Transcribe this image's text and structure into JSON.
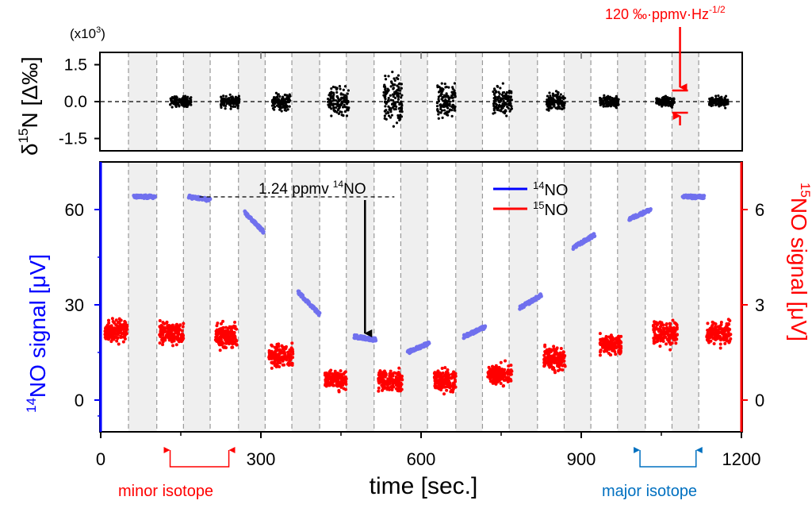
{
  "chart_data": [
    {
      "type": "scatter",
      "panel": "top",
      "ylabel_main": "δ",
      "ylabel_sup": "15",
      "ylabel_rest": "N [Δ‰]",
      "multiplier": "(x10",
      "multiplier_sup": "3",
      "multiplier_close": ")",
      "ylim": [
        -2.0,
        2.0
      ],
      "yticks": [
        {
          "value": 1.5,
          "label": "1.5"
        },
        {
          "value": 0.0,
          "label": "0.0"
        },
        {
          "value": -1.5,
          "label": "-1.5"
        }
      ],
      "zero_line": true,
      "series": [
        {
          "name": "delta15N",
          "color": "#000000",
          "clusters": [
            {
              "x_start": 130,
              "x_end": 170,
              "spread": 0.3
            },
            {
              "x_start": 225,
              "x_end": 260,
              "spread": 0.35
            },
            {
              "x_start": 320,
              "x_end": 355,
              "spread": 0.45
            },
            {
              "x_start": 425,
              "x_end": 465,
              "spread": 0.8
            },
            {
              "x_start": 530,
              "x_end": 565,
              "spread": 1.4
            },
            {
              "x_start": 630,
              "x_end": 665,
              "spread": 1.1
            },
            {
              "x_start": 735,
              "x_end": 770,
              "spread": 0.85
            },
            {
              "x_start": 835,
              "x_end": 870,
              "spread": 0.5
            },
            {
              "x_start": 935,
              "x_end": 970,
              "spread": 0.35
            },
            {
              "x_start": 1040,
              "x_end": 1075,
              "spread": 0.3
            },
            {
              "x_start": 1140,
              "x_end": 1175,
              "spread": 0.3
            }
          ]
        }
      ],
      "annotation": {
        "text": "120 ‰·ppmv·Hz",
        "sup": "-1/2",
        "color": "#ff0000",
        "x": 1085,
        "span": [
          -0.45,
          0.45
        ]
      }
    },
    {
      "type": "scatter",
      "panel": "bottom",
      "xlabel": "time [sec.]",
      "xlim": [
        0,
        1200
      ],
      "xticks": [
        {
          "value": 0,
          "label": "0"
        },
        {
          "value": 300,
          "label": "300"
        },
        {
          "value": 600,
          "label": "600"
        },
        {
          "value": 900,
          "label": "900"
        },
        {
          "value": 1200,
          "label": "1200"
        }
      ],
      "left_axis": {
        "label_sup": "14",
        "label_rest": "NO signal [μV]",
        "color": "#0000ff",
        "ylim": [
          -10,
          75
        ],
        "yticks": [
          {
            "value": 60,
            "label": "60"
          },
          {
            "value": 30,
            "label": "30"
          },
          {
            "value": 0,
            "label": "0"
          }
        ]
      },
      "right_axis": {
        "label_sup": "15",
        "label_rest": "NO signal [μV]",
        "color": "#ff0000",
        "ylim": [
          -1.0,
          7.5
        ],
        "yticks": [
          {
            "value": 6,
            "label": "6"
          },
          {
            "value": 3,
            "label": "3"
          },
          {
            "value": 0,
            "label": "0"
          }
        ]
      },
      "dashed_lines": [
        52,
        105,
        155,
        205,
        258,
        308,
        358,
        410,
        460,
        512,
        562,
        612,
        665,
        715,
        765,
        818,
        868,
        918,
        968,
        1020,
        1070,
        1120
      ],
      "shaded_bands": [
        [
          52,
          105
        ],
        [
          155,
          205
        ],
        [
          258,
          308
        ],
        [
          358,
          410
        ],
        [
          460,
          512
        ],
        [
          562,
          612
        ],
        [
          665,
          715
        ],
        [
          765,
          818
        ],
        [
          868,
          918
        ],
        [
          968,
          1020
        ],
        [
          1070,
          1120
        ]
      ],
      "legend": [
        {
          "label_sup": "14",
          "label_rest": "NO",
          "color": "#0000ff"
        },
        {
          "label_sup": "15",
          "label_rest": "NO",
          "color": "#ff0000"
        }
      ],
      "series": [
        {
          "name": "14NO",
          "axis": "left",
          "color": "#7070ee",
          "segments": [
            {
              "x_start": 62,
              "x_end": 102,
              "y_start": 64,
              "y_end": 64
            },
            {
              "x_start": 165,
              "x_end": 205,
              "y_start": 64,
              "y_end": 63
            },
            {
              "x_start": 270,
              "x_end": 305,
              "y_start": 59,
              "y_end": 53
            },
            {
              "x_start": 370,
              "x_end": 410,
              "y_start": 34,
              "y_end": 27
            },
            {
              "x_start": 475,
              "x_end": 515,
              "y_start": 20,
              "y_end": 19
            },
            {
              "x_start": 575,
              "x_end": 615,
              "y_start": 15,
              "y_end": 18
            },
            {
              "x_start": 680,
              "x_end": 720,
              "y_start": 20,
              "y_end": 23
            },
            {
              "x_start": 785,
              "x_end": 825,
              "y_start": 29,
              "y_end": 33
            },
            {
              "x_start": 885,
              "x_end": 925,
              "y_start": 48,
              "y_end": 52
            },
            {
              "x_start": 990,
              "x_end": 1030,
              "y_start": 57,
              "y_end": 60
            },
            {
              "x_start": 1090,
              "x_end": 1130,
              "y_start": 64,
              "y_end": 64
            }
          ]
        },
        {
          "name": "15NO",
          "axis": "right",
          "color": "#ff0000",
          "clusters": [
            {
              "x_start": 8,
              "x_end": 50,
              "center": 2.2,
              "spread": 0.5
            },
            {
              "x_start": 110,
              "x_end": 155,
              "center": 2.1,
              "spread": 0.5
            },
            {
              "x_start": 215,
              "x_end": 255,
              "center": 2.0,
              "spread": 0.55
            },
            {
              "x_start": 315,
              "x_end": 360,
              "center": 1.4,
              "spread": 0.5
            },
            {
              "x_start": 420,
              "x_end": 460,
              "center": 0.65,
              "spread": 0.45
            },
            {
              "x_start": 520,
              "x_end": 565,
              "center": 0.6,
              "spread": 0.5
            },
            {
              "x_start": 625,
              "x_end": 665,
              "center": 0.6,
              "spread": 0.5
            },
            {
              "x_start": 725,
              "x_end": 770,
              "center": 0.8,
              "spread": 0.5
            },
            {
              "x_start": 830,
              "x_end": 870,
              "center": 1.3,
              "spread": 0.5
            },
            {
              "x_start": 935,
              "x_end": 975,
              "center": 1.75,
              "spread": 0.4
            },
            {
              "x_start": 1035,
              "x_end": 1080,
              "center": 2.1,
              "spread": 0.55
            },
            {
              "x_start": 1135,
              "x_end": 1180,
              "center": 2.1,
              "spread": 0.5
            }
          ]
        }
      ],
      "annotations": {
        "conc_label": "1.24 ppmv",
        "conc_sup": "14",
        "conc_rest": "NO",
        "conc_line": {
          "x_start": 185,
          "x_end": 550,
          "y": 64
        },
        "conc_arrow": {
          "x": 495,
          "y_from": 63,
          "y_to": 21
        },
        "minor_label": "minor isotope",
        "minor_color": "#ff0000",
        "minor_x": [
          130,
          240
        ],
        "major_label": "major isotope",
        "major_color": "#0070c0",
        "major_x": [
          1010,
          1115
        ]
      }
    }
  ]
}
